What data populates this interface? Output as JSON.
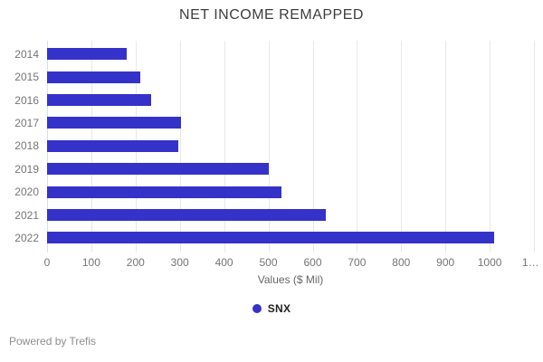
{
  "title": "NET INCOME REMAPPED",
  "chart_data": {
    "type": "bar",
    "orientation": "horizontal",
    "title": "NET INCOME REMAPPED",
    "categories": [
      "2014",
      "2015",
      "2016",
      "2017",
      "2018",
      "2019",
      "2020",
      "2021",
      "2022"
    ],
    "series": [
      {
        "name": "SNX",
        "values": [
          180,
          210,
          235,
          302,
          297,
          500,
          530,
          630,
          1010
        ]
      }
    ],
    "xlabel": "Values ($ Mil)",
    "ylabel": "",
    "xlim": [
      0,
      1100
    ],
    "xticks": {
      "values": [
        0,
        100,
        200,
        300,
        400,
        500,
        600,
        700,
        800,
        900,
        1000,
        1100
      ],
      "labels": [
        "0",
        "100",
        "200",
        "300",
        "400",
        "500",
        "600",
        "700",
        "800",
        "900",
        "1000",
        "1…"
      ]
    },
    "grid": true,
    "legend_position": "bottom",
    "bar_color": "#3532c9"
  },
  "legend": {
    "label": "SNX",
    "dot_color": "#3532c9"
  },
  "footer": {
    "text": "Powered by Trefis"
  },
  "colors": {
    "bar": "#3532c9",
    "title_text": "#3d3d3d",
    "axis_text": "#757575",
    "gridline": "#e8e8e8",
    "zero_line": "#d9ddef",
    "footer_text": "#8d8d8d"
  }
}
